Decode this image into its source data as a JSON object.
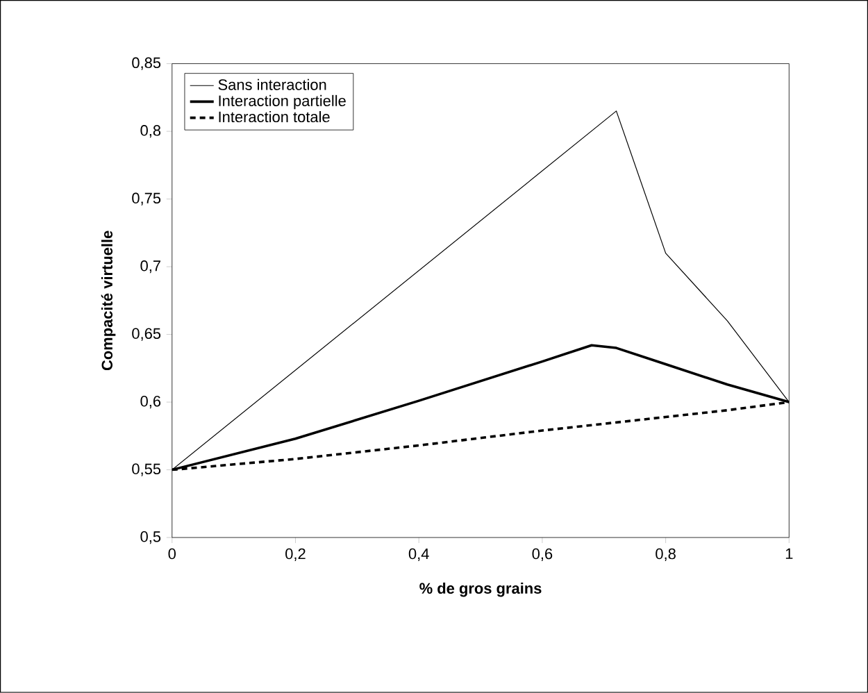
{
  "chart_data": {
    "type": "line",
    "xlabel": "% de gros grains",
    "ylabel": "Compacité virtuelle",
    "xlim": [
      0,
      1
    ],
    "ylim": [
      0.5,
      0.85
    ],
    "xticks": [
      0,
      {
        "value": 0.2,
        "label": "0,2"
      },
      {
        "value": 0.4,
        "label": "0,4"
      },
      {
        "value": 0.6,
        "label": "0,6"
      },
      {
        "value": 0.8,
        "label": "0,8"
      },
      1
    ],
    "yticks": [
      {
        "value": 0.5,
        "label": "0,5"
      },
      {
        "value": 0.55,
        "label": "0,55"
      },
      {
        "value": 0.6,
        "label": "0,6"
      },
      {
        "value": 0.65,
        "label": "0,65"
      },
      {
        "value": 0.7,
        "label": "0,7"
      },
      {
        "value": 0.75,
        "label": "0,75"
      },
      {
        "value": 0.8,
        "label": "0,8"
      },
      {
        "value": 0.85,
        "label": "0,85"
      }
    ],
    "grid": false,
    "legend": "top left",
    "marker": "none",
    "series": [
      {
        "name": "Sans interaction",
        "color": "#000000",
        "line_style": "solid",
        "x": [
          0,
          0.72,
          0.8,
          0.9,
          1
        ],
        "values": [
          0.55,
          0.815,
          0.71,
          0.66,
          0.6
        ]
      },
      {
        "name": "Interaction partielle",
        "color": "#000000",
        "line_style": "solid",
        "x": [
          0,
          0.2,
          0.4,
          0.6,
          0.68,
          0.72,
          0.8,
          0.9,
          1
        ],
        "values": [
          0.55,
          0.573,
          0.601,
          0.63,
          0.642,
          0.64,
          0.628,
          0.613,
          0.6
        ]
      },
      {
        "name": "Interaction totale",
        "color": "#000000",
        "line_style": "dashed",
        "x": [
          0,
          0.2,
          0.4,
          0.6,
          0.8,
          0.9,
          1
        ],
        "values": [
          0.55,
          0.558,
          0.568,
          0.579,
          0.589,
          0.594,
          0.6
        ]
      }
    ]
  }
}
